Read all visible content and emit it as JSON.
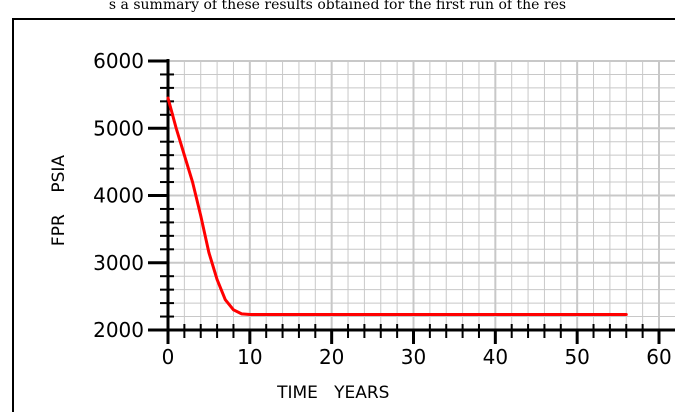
{
  "caption": "s a summary of these results obtained for the first run of the res",
  "chart_data": {
    "type": "line",
    "title": "",
    "xlabel": "TIME   YEARS",
    "ylabel": "FPR    PSIA",
    "xlim": [
      0,
      60
    ],
    "ylim": [
      2000,
      6000
    ],
    "x_ticks": [
      0,
      10,
      20,
      30,
      40,
      50,
      60
    ],
    "x_tick_labels": [
      "0",
      "10",
      "20",
      "30",
      "40",
      "50",
      "60"
    ],
    "y_ticks": [
      2000,
      3000,
      4000,
      5000,
      6000
    ],
    "y_tick_labels": [
      "2000",
      "3000",
      "4000",
      "5000",
      "6000"
    ],
    "grid": true,
    "series": [
      {
        "color": "#ff0000",
        "x": [
          0,
          1,
          2,
          3,
          4,
          5,
          6,
          7,
          8,
          9,
          10,
          12,
          20,
          30,
          40,
          50,
          56
        ],
        "y": [
          5450,
          5000,
          4600,
          4200,
          3700,
          3150,
          2750,
          2450,
          2300,
          2240,
          2230,
          2230,
          2230,
          2230,
          2230,
          2230,
          2230
        ]
      }
    ],
    "colors": {
      "grid": "#c8c8c8",
      "axis": "#000000",
      "line": "#ff0000"
    }
  }
}
